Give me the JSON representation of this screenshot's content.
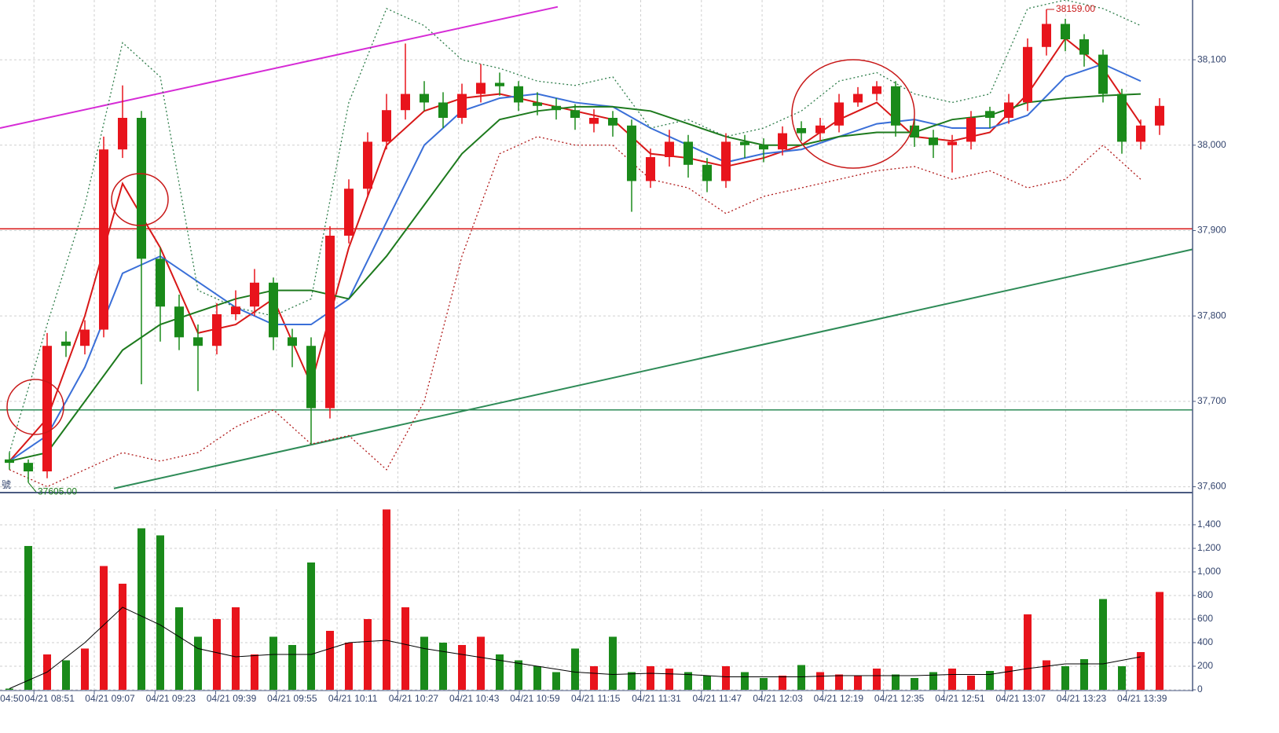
{
  "chart_data": [
    {
      "type": "candlestick",
      "x": [
        0,
        1,
        2,
        3,
        4,
        5,
        6,
        7,
        8,
        9,
        10,
        11,
        12,
        13,
        14,
        15,
        16,
        17,
        18,
        19,
        20,
        21,
        22,
        23,
        24,
        25,
        26,
        27,
        28,
        29,
        30,
        31,
        32,
        33,
        34,
        35,
        36,
        37,
        38,
        39,
        40,
        41,
        42,
        43,
        44,
        45,
        46,
        47,
        48,
        49,
        50,
        51,
        52,
        53,
        54,
        55,
        56,
        57,
        58,
        59,
        60,
        61
      ],
      "open": [
        37632,
        37628,
        37618,
        37770,
        37765,
        37784,
        37995,
        38032,
        37867,
        37811,
        37775,
        37765,
        37802,
        37811,
        37839,
        37775,
        37765,
        37692,
        37894,
        37949,
        38004,
        38041,
        38060,
        38050,
        38032,
        38060,
        38073,
        38069,
        38050,
        38046,
        38041,
        38025,
        38032,
        38023,
        37958,
        37986,
        38004,
        37977,
        37958,
        38004,
        38000,
        37995,
        38020,
        38014,
        38023,
        38050,
        38060,
        38069,
        38023,
        38009,
        38000,
        38004,
        38040,
        38032,
        38050,
        38115,
        38142,
        38124,
        38106,
        38060,
        38004,
        38023
      ],
      "high": [
        37640,
        37632,
        37780,
        37782,
        37795,
        38010,
        38070,
        38040,
        37880,
        37825,
        37790,
        37815,
        37830,
        37855,
        37845,
        37785,
        37775,
        37905,
        37960,
        38015,
        38060,
        38119,
        38075,
        38062,
        38072,
        38095,
        38085,
        38075,
        38062,
        38055,
        38048,
        38042,
        38040,
        38030,
        37996,
        38018,
        38012,
        37985,
        38014,
        38012,
        38008,
        38022,
        38028,
        38032,
        38060,
        38068,
        38075,
        38075,
        38030,
        38018,
        38012,
        38040,
        38045,
        38060,
        38125,
        38159,
        38148,
        38130,
        38112,
        38066,
        38030,
        38055
      ],
      "low": [
        37620,
        37605,
        37610,
        37752,
        37755,
        37775,
        37985,
        37720,
        37770,
        37760,
        37712,
        37755,
        37795,
        37800,
        37760,
        37740,
        37650,
        37680,
        37885,
        37940,
        37995,
        38030,
        38040,
        38020,
        38025,
        38050,
        38058,
        38040,
        38035,
        38030,
        38018,
        38015,
        38010,
        37922,
        37950,
        37975,
        37962,
        37945,
        37950,
        37985,
        37980,
        37988,
        38005,
        38005,
        38015,
        38045,
        38052,
        38010,
        37998,
        37985,
        37968,
        37995,
        38020,
        38025,
        38040,
        38105,
        38110,
        38092,
        38050,
        37990,
        37995,
        38012
      ],
      "close": [
        37628,
        37618,
        37765,
        37765,
        37784,
        37995,
        38032,
        37867,
        37811,
        37775,
        37765,
        37802,
        37811,
        37839,
        37775,
        37765,
        37692,
        37894,
        37949,
        38004,
        38041,
        38060,
        38050,
        38032,
        38060,
        38073,
        38069,
        38050,
        38046,
        38041,
        38032,
        38032,
        38023,
        37958,
        37986,
        38004,
        37977,
        37958,
        38004,
        38000,
        37995,
        38014,
        38014,
        38023,
        38050,
        38060,
        38069,
        38023,
        38009,
        38000,
        38004,
        38032,
        38032,
        38050,
        38115,
        38142,
        38124,
        38106,
        38060,
        38004,
        38023,
        38046
      ],
      "up_color": "#e8141c",
      "down_color": "#1a8a1a",
      "lines": [
        {
          "color": "#d81818",
          "x": [
            0,
            2,
            4,
            6,
            8,
            10,
            12,
            14,
            16,
            18,
            20,
            22,
            24,
            26,
            28,
            30,
            32,
            34,
            36,
            38,
            40,
            42,
            44,
            46,
            48,
            50,
            52,
            54,
            56,
            58,
            60
          ],
          "values": [
            37630,
            37680,
            37800,
            37955,
            37880,
            37780,
            37790,
            37820,
            37720,
            37880,
            38000,
            38040,
            38055,
            38060,
            38050,
            38040,
            38030,
            37990,
            37985,
            37975,
            37985,
            38000,
            38030,
            38050,
            38010,
            38005,
            38015,
            38060,
            38125,
            38090,
            38025
          ]
        },
        {
          "color": "#3a6fd8",
          "x": [
            0,
            2,
            4,
            6,
            8,
            10,
            12,
            14,
            16,
            18,
            20,
            22,
            24,
            26,
            28,
            30,
            32,
            34,
            36,
            38,
            40,
            42,
            44,
            46,
            48,
            50,
            52,
            54,
            56,
            58,
            60
          ],
          "values": [
            37630,
            37660,
            37740,
            37850,
            37870,
            37840,
            37810,
            37790,
            37790,
            37820,
            37910,
            38000,
            38040,
            38055,
            38060,
            38050,
            38045,
            38020,
            38000,
            37980,
            37990,
            37995,
            38010,
            38025,
            38030,
            38020,
            38020,
            38035,
            38080,
            38095,
            38075
          ]
        },
        {
          "color": "#1d7a1d",
          "x": [
            0,
            2,
            4,
            6,
            8,
            10,
            12,
            14,
            16,
            18,
            20,
            22,
            24,
            26,
            28,
            30,
            32,
            34,
            36,
            38,
            40,
            42,
            44,
            46,
            48,
            50,
            52,
            54,
            56,
            58,
            60
          ],
          "values": [
            37630,
            37640,
            37700,
            37760,
            37790,
            37805,
            37820,
            37830,
            37830,
            37820,
            37870,
            37930,
            37990,
            38030,
            38040,
            38045,
            38045,
            38040,
            38025,
            38010,
            38000,
            38000,
            38010,
            38015,
            38015,
            38030,
            38035,
            38050,
            38055,
            38058,
            38060
          ]
        },
        {
          "color": "#2e7d4a",
          "dash": true,
          "x": [
            0,
            2,
            4,
            6,
            8,
            10,
            12,
            14,
            16,
            18,
            20,
            22,
            24,
            26,
            28,
            30,
            32,
            34,
            36,
            38,
            40,
            42,
            44,
            46,
            48,
            50,
            52,
            54,
            56,
            58,
            60
          ],
          "values": [
            37640,
            37790,
            37930,
            38120,
            38080,
            37830,
            37810,
            37800,
            37820,
            38050,
            38160,
            38140,
            38100,
            38090,
            38075,
            38070,
            38080,
            38020,
            38030,
            38010,
            38020,
            38040,
            38075,
            38085,
            38060,
            38050,
            38060,
            38160,
            38170,
            38160,
            38140
          ]
        },
        {
          "color": "#b01818",
          "dash": true,
          "x": [
            0,
            2,
            4,
            6,
            8,
            10,
            12,
            14,
            16,
            18,
            20,
            22,
            24,
            26,
            28,
            30,
            32,
            34,
            36,
            38,
            40,
            42,
            44,
            46,
            48,
            50,
            52,
            54,
            56,
            58,
            60
          ],
          "values": [
            37620,
            37600,
            37620,
            37640,
            37630,
            37640,
            37670,
            37690,
            37650,
            37660,
            37620,
            37700,
            37870,
            37990,
            38010,
            38000,
            38000,
            37960,
            37950,
            37920,
            37940,
            37950,
            37960,
            37970,
            37975,
            37960,
            37970,
            37950,
            37960,
            38000,
            37960
          ]
        }
      ],
      "trendlines": [
        {
          "color": "#d62bd6",
          "x": [
            -0.5,
            29.08
          ],
          "y": [
            38020,
            38162
          ]
        },
        {
          "color": "#2e8b57",
          "x": [
            5.54,
            62.75
          ],
          "y": [
            37598,
            37878
          ]
        }
      ],
      "hlines": [
        {
          "color": "#d81818",
          "value": 37902
        },
        {
          "color": "#2e8b57",
          "value": 37690
        }
      ],
      "annotations": [
        {
          "value": 38159,
          "label": "38159.00",
          "x": 55,
          "color": "#c81818"
        },
        {
          "value": 37605,
          "label": "37605.00",
          "x": 1,
          "color": "#1a7a1a"
        }
      ],
      "side_label": "號",
      "xlim": [
        -0.5,
        62.75
      ],
      "ylim": [
        37595,
        38170
      ],
      "yticks": [
        {
          "value": 37600,
          "label": "37,600"
        },
        {
          "value": 37700,
          "label": "37,700"
        },
        {
          "value": 37800,
          "label": "37,800"
        },
        {
          "value": 37900,
          "label": "37,900"
        },
        {
          "value": 38000,
          "label": "38,000"
        },
        {
          "value": 38100,
          "label": "38,100"
        }
      ],
      "grid": true
    },
    {
      "type": "bar",
      "x": [
        0,
        1,
        2,
        3,
        4,
        5,
        6,
        7,
        8,
        9,
        10,
        11,
        12,
        13,
        14,
        15,
        16,
        17,
        18,
        19,
        20,
        21,
        22,
        23,
        24,
        25,
        26,
        27,
        28,
        29,
        30,
        31,
        32,
        33,
        34,
        35,
        36,
        37,
        38,
        39,
        40,
        41,
        42,
        43,
        44,
        45,
        46,
        47,
        48,
        49,
        50,
        51,
        52,
        53,
        54,
        55,
        56,
        57,
        58,
        59,
        60,
        61
      ],
      "values": [
        10,
        1220,
        300,
        250,
        350,
        1050,
        900,
        1370,
        1310,
        700,
        450,
        600,
        700,
        300,
        450,
        380,
        1080,
        500,
        400,
        600,
        1530,
        700,
        450,
        400,
        380,
        450,
        300,
        250,
        200,
        150,
        350,
        200,
        450,
        150,
        200,
        180,
        150,
        120,
        200,
        150,
        100,
        120,
        210,
        150,
        130,
        120,
        180,
        130,
        100,
        150,
        180,
        120,
        160,
        200,
        640,
        250,
        200,
        260,
        770,
        200,
        320,
        830
      ],
      "ma": {
        "color": "#000000",
        "x": [
          0,
          2,
          4,
          6,
          8,
          10,
          12,
          14,
          16,
          18,
          20,
          22,
          24,
          26,
          28,
          30,
          32,
          34,
          36,
          38,
          40,
          42,
          44,
          46,
          48,
          50,
          52,
          54,
          56,
          58,
          60
        ],
        "values": [
          10,
          150,
          400,
          700,
          550,
          350,
          280,
          300,
          300,
          400,
          420,
          350,
          300,
          250,
          200,
          150,
          130,
          140,
          130,
          110,
          110,
          110,
          120,
          120,
          120,
          130,
          130,
          180,
          220,
          220,
          280
        ]
      },
      "xlim": [
        -0.5,
        62.75
      ],
      "ylim": [
        0,
        1533
      ],
      "yticks": [
        0,
        200,
        400,
        600,
        800,
        {
          "value": 1000,
          "label": "1,000"
        },
        {
          "value": 1200,
          "label": "1,200"
        },
        {
          "value": 1400,
          "label": "1,400"
        }
      ],
      "xticks": [
        {
          "value": -0.7,
          "label": "04:50"
        },
        {
          "value": 1.3,
          "label": "04/21 08:51"
        },
        {
          "value": 4.5,
          "label": "04/21 09:07"
        },
        {
          "value": 7.72,
          "label": "04/21 09:23"
        },
        {
          "value": 10.94,
          "label": "04/21 09:39"
        },
        {
          "value": 14.16,
          "label": "04/21 09:55"
        },
        {
          "value": 17.38,
          "label": "04/21 10:11"
        },
        {
          "value": 20.6,
          "label": "04/21 10:27"
        },
        {
          "value": 23.82,
          "label": "04/21 10:43"
        },
        {
          "value": 27.04,
          "label": "04/21 10:59"
        },
        {
          "value": 30.26,
          "label": "04/21 11:15"
        },
        {
          "value": 33.48,
          "label": "04/21 11:31"
        },
        {
          "value": 36.7,
          "label": "04/21 11:47"
        },
        {
          "value": 39.92,
          "label": "04/21 12:03"
        },
        {
          "value": 43.14,
          "label": "04/21 12:19"
        },
        {
          "value": 46.36,
          "label": "04/21 12:35"
        },
        {
          "value": 49.58,
          "label": "04/21 12:51"
        },
        {
          "value": 52.8,
          "label": "04/21 13:07"
        },
        {
          "value": 56.02,
          "label": "04/21 13:23"
        },
        {
          "value": 59.24,
          "label": "04/21 13:39"
        }
      ],
      "grid": true
    }
  ]
}
